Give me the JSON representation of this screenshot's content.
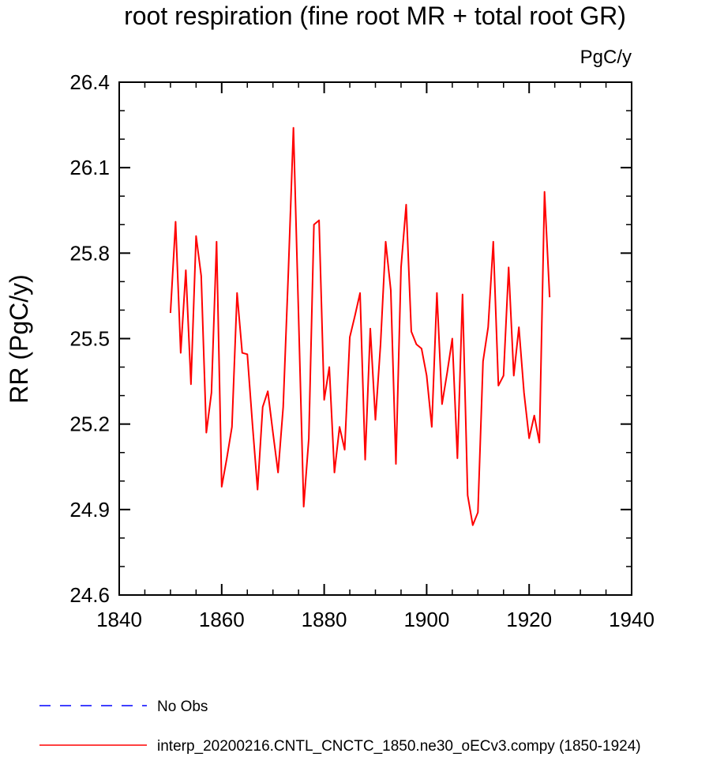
{
  "chart_data": {
    "type": "line",
    "title": "root respiration (fine root MR + total root GR)",
    "units": "PgC/y",
    "xlabel": "",
    "ylabel": "RR  (PgC/y)",
    "xlim": [
      1840,
      1940
    ],
    "ylim": [
      24.6,
      26.4
    ],
    "xticks": [
      "1840",
      "1860",
      "1880",
      "1900",
      "1920",
      "1940"
    ],
    "yticks": [
      "24.6",
      "24.9",
      "25.2",
      "25.5",
      "25.8",
      "26.1",
      "26.4"
    ],
    "legend": [
      {
        "label": "No Obs",
        "color": "#0000ff",
        "dash": true
      },
      {
        "label": "interp_20200216.CNTL_CNCTC_1850.ne30_oECv3.compy (1850-1924)",
        "color": "#ff0000",
        "dash": false
      }
    ],
    "series": [
      {
        "name": "interp_20200216.CNTL_CNCTC_1850.ne30_oECv3.compy (1850-1924)",
        "color": "#ff0000",
        "x": [
          1850,
          1851,
          1852,
          1853,
          1854,
          1855,
          1856,
          1857,
          1858,
          1859,
          1860,
          1861,
          1862,
          1863,
          1864,
          1865,
          1866,
          1867,
          1868,
          1869,
          1870,
          1871,
          1872,
          1873,
          1874,
          1875,
          1876,
          1877,
          1878,
          1879,
          1880,
          1881,
          1882,
          1883,
          1884,
          1885,
          1886,
          1887,
          1888,
          1889,
          1890,
          1891,
          1892,
          1893,
          1894,
          1895,
          1896,
          1897,
          1898,
          1899,
          1900,
          1901,
          1902,
          1903,
          1904,
          1905,
          1906,
          1907,
          1908,
          1909,
          1910,
          1911,
          1912,
          1913,
          1914,
          1915,
          1916,
          1917,
          1918,
          1919,
          1920,
          1921,
          1922,
          1923,
          1924
        ],
        "y": [
          25.59,
          25.91,
          25.45,
          25.74,
          25.34,
          25.86,
          25.72,
          25.17,
          25.31,
          25.84,
          24.98,
          25.08,
          25.19,
          25.66,
          25.45,
          25.445,
          25.2,
          24.97,
          25.26,
          25.315,
          25.17,
          25.03,
          25.26,
          25.73,
          26.24,
          25.58,
          24.91,
          25.15,
          25.9,
          25.915,
          25.285,
          25.4,
          25.03,
          25.19,
          25.11,
          25.505,
          25.58,
          25.66,
          25.075,
          25.535,
          25.215,
          25.48,
          25.84,
          25.67,
          25.06,
          25.75,
          25.97,
          25.525,
          25.48,
          25.465,
          25.37,
          25.19,
          25.66,
          25.27,
          25.38,
          25.5,
          25.08,
          25.655,
          24.95,
          24.845,
          24.89,
          25.42,
          25.54,
          25.84,
          25.335,
          25.37,
          25.75,
          25.37,
          25.54,
          25.31,
          25.15,
          25.23,
          25.135,
          26.015,
          25.645
        ]
      }
    ]
  }
}
